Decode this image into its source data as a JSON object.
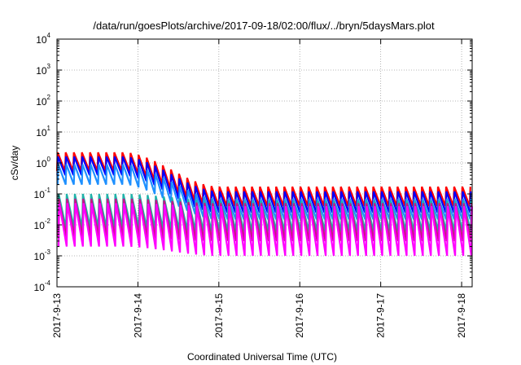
{
  "chart_data": {
    "type": "line",
    "title": "/data/run/goesPlots/archive/2017-09-18/02:00/flux/../bryn/5daysMars.plot",
    "xlabel": "Coordinated Universal Time (UTC)",
    "ylabel": "cSv/day",
    "yscale": "log",
    "ylim": [
      0.0001,
      10000
    ],
    "xlim": [
      0,
      5.13
    ],
    "x_unit": "days since first tick",
    "xticks": [
      {
        "value": 0,
        "label": "2017-9-13"
      },
      {
        "value": 1,
        "label": "2017-9-14"
      },
      {
        "value": 2,
        "label": "2017-9-15"
      },
      {
        "value": 3,
        "label": "2017-9-16"
      },
      {
        "value": 4,
        "label": "2017-9-17"
      },
      {
        "value": 5,
        "label": "2017-9-18"
      }
    ],
    "yticks": [
      {
        "value": 0.0001,
        "base": "10",
        "exp": "-4"
      },
      {
        "value": 0.001,
        "base": "10",
        "exp": "-3"
      },
      {
        "value": 0.01,
        "base": "10",
        "exp": "-2"
      },
      {
        "value": 0.1,
        "base": "10",
        "exp": "-1"
      },
      {
        "value": 1,
        "base": "10",
        "exp": "0"
      },
      {
        "value": 10,
        "base": "10",
        "exp": "1"
      },
      {
        "value": 100,
        "base": "10",
        "exp": "2"
      },
      {
        "value": 1000,
        "base": "10",
        "exp": "3"
      },
      {
        "value": 10000,
        "base": "10",
        "exp": "4"
      }
    ],
    "grid": true,
    "legend": "none",
    "sawtooth_period_days": 0.1,
    "series": [
      {
        "color": "#ff0000",
        "peak_early": 2.2,
        "trough_early": 0.55,
        "peak_late": 0.17,
        "trough_late": 0.04
      },
      {
        "color": "#0000ff",
        "peak_early": 1.6,
        "trough_early": 0.4,
        "peak_late": 0.12,
        "trough_late": 0.025
      },
      {
        "color": "#1e90ff",
        "peak_early": 0.9,
        "trough_early": 0.2,
        "peak_late": 0.07,
        "trough_late": 0.015
      },
      {
        "color": "#20b2aa",
        "peak_early": 0.1,
        "trough_early": 0.008,
        "peak_late": 0.06,
        "trough_late": 0.006
      },
      {
        "color": "#c71585",
        "peak_early": 0.07,
        "trough_early": 0.004,
        "peak_late": 0.05,
        "trough_late": 0.003
      },
      {
        "color": "#ff00ff",
        "peak_early": 0.05,
        "trough_early": 0.002,
        "peak_late": 0.04,
        "trough_late": 0.001
      }
    ]
  }
}
